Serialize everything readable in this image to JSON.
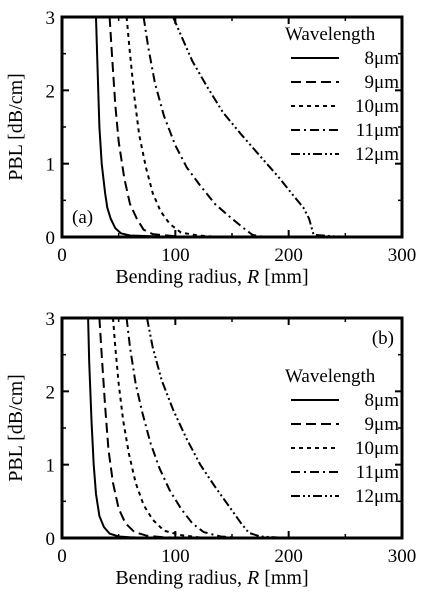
{
  "chart_data": [
    {
      "type": "line",
      "panel_label": "(a)",
      "xlabel": "Bending radius, R [mm]",
      "ylabel": "PBL [dB/cm]",
      "xlim": [
        0,
        300
      ],
      "ylim": [
        0,
        3
      ],
      "xticks": [
        "0",
        "100",
        "200",
        "300"
      ],
      "yticks": [
        "0",
        "1",
        "2",
        "3"
      ],
      "grid": false,
      "legend_title": "Wavelength",
      "legend_position": "right",
      "series": [
        {
          "name": "8μm",
          "dash": "solid",
          "x": [
            30,
            31,
            33,
            35,
            38,
            40,
            43,
            47,
            52,
            60,
            80,
            100
          ],
          "y": [
            3.0,
            2.5,
            1.5,
            1.0,
            0.6,
            0.4,
            0.25,
            0.12,
            0.05,
            0.02,
            0.01,
            0.0
          ]
        },
        {
          "name": "9μm",
          "dash": "long",
          "x": [
            42,
            44,
            47,
            50,
            55,
            60,
            66,
            72,
            80,
            100,
            120
          ],
          "y": [
            3.0,
            2.5,
            1.8,
            1.3,
            0.8,
            0.45,
            0.25,
            0.1,
            0.04,
            0.01,
            0.0
          ]
        },
        {
          "name": "10μm",
          "dash": "short",
          "x": [
            57,
            60,
            64,
            68,
            74,
            80,
            87,
            95,
            105,
            120,
            140
          ],
          "y": [
            3.0,
            2.5,
            1.9,
            1.4,
            0.95,
            0.6,
            0.35,
            0.18,
            0.06,
            0.02,
            0.0
          ]
        },
        {
          "name": "11μm",
          "dash": "dash-dot",
          "x": [
            72,
            76,
            82,
            90,
            100,
            110,
            122,
            135,
            150,
            162,
            168,
            175,
            180
          ],
          "y": [
            3.0,
            2.6,
            2.1,
            1.65,
            1.25,
            0.95,
            0.7,
            0.45,
            0.25,
            0.1,
            0.03,
            0.01,
            0.0
          ]
        },
        {
          "name": "12μm",
          "dash": "dash-dot-dot",
          "x": [
            98,
            105,
            115,
            128,
            142,
            158,
            175,
            192,
            205,
            213,
            218,
            222,
            240,
            260,
            280
          ],
          "y": [
            3.0,
            2.75,
            2.4,
            2.05,
            1.7,
            1.4,
            1.1,
            0.8,
            0.55,
            0.4,
            0.25,
            0.03,
            0.01,
            0.0,
            0.0
          ]
        }
      ]
    },
    {
      "type": "line",
      "panel_label": "(b)",
      "xlabel": "Bending radius, R [mm]",
      "ylabel": "PBL [dB/cm]",
      "xlim": [
        0,
        300
      ],
      "ylim": [
        0,
        3
      ],
      "xticks": [
        "0",
        "100",
        "200",
        "300"
      ],
      "yticks": [
        "0",
        "1",
        "2",
        "3"
      ],
      "grid": false,
      "legend_title": "Wavelength",
      "legend_position": "right",
      "series": [
        {
          "name": "8μm",
          "dash": "solid",
          "x": [
            23,
            24,
            26,
            28,
            30,
            33,
            37,
            42,
            50,
            60,
            80,
            100
          ],
          "y": [
            3.0,
            2.4,
            1.6,
            1.0,
            0.6,
            0.3,
            0.15,
            0.06,
            0.02,
            0.01,
            0.0,
            0.0
          ]
        },
        {
          "name": "9μm",
          "dash": "long",
          "x": [
            33,
            35,
            38,
            41,
            45,
            50,
            56,
            64,
            75,
            90,
            110
          ],
          "y": [
            3.0,
            2.5,
            1.8,
            1.2,
            0.75,
            0.4,
            0.2,
            0.08,
            0.03,
            0.01,
            0.0
          ]
        },
        {
          "name": "10μm",
          "dash": "short",
          "x": [
            45,
            47,
            50,
            54,
            59,
            65,
            72,
            80,
            90,
            105,
            120,
            140
          ],
          "y": [
            3.0,
            2.6,
            2.1,
            1.6,
            1.15,
            0.75,
            0.45,
            0.25,
            0.1,
            0.04,
            0.01,
            0.0
          ]
        },
        {
          "name": "11μm",
          "dash": "dash-dot",
          "x": [
            57,
            60,
            65,
            71,
            78,
            86,
            95,
            105,
            115,
            125,
            140,
            160
          ],
          "y": [
            3.0,
            2.6,
            2.1,
            1.7,
            1.3,
            0.95,
            0.65,
            0.4,
            0.2,
            0.08,
            0.02,
            0.0
          ]
        },
        {
          "name": "12μm",
          "dash": "dash-dot-dot",
          "x": [
            75,
            80,
            88,
            98,
            110,
            122,
            135,
            148,
            158,
            165,
            175,
            200
          ],
          "y": [
            3.0,
            2.6,
            2.15,
            1.75,
            1.35,
            1.0,
            0.7,
            0.42,
            0.2,
            0.07,
            0.02,
            0.0
          ]
        }
      ]
    }
  ]
}
